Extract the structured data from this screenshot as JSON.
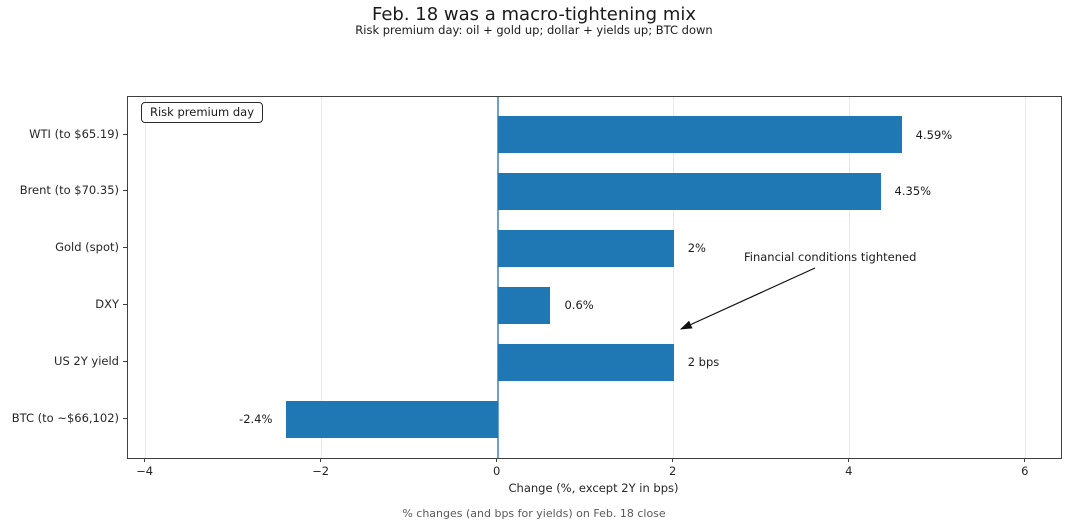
{
  "header": {
    "title": "Feb. 18 was a macro-tightening mix",
    "subtitle": "Risk premium day: oil + gold up; dollar + yields up; BTC down"
  },
  "footer": {
    "caption": "% changes (and bps for yields) on Feb. 18 close"
  },
  "chart_data": {
    "type": "bar",
    "orientation": "horizontal",
    "title": "Feb. 18 was a macro-tightening mix",
    "subtitle": "Risk premium day: oil + gold up; dollar + yields up; BTC down",
    "categories": [
      "WTI (to $65.19)",
      "Brent (to $70.35)",
      "Gold (spot)",
      "DXY",
      "US 2Y yield",
      "BTC (to ~$66,102)"
    ],
    "values": [
      4.59,
      4.35,
      2,
      0.6,
      2,
      -2.4
    ],
    "value_labels": [
      "4.59%",
      "4.35%",
      "2%",
      "0.6%",
      "2 bps",
      "-2.4%"
    ],
    "xlabel": "Change (%, except 2Y in bps)",
    "xlim": [
      -4.2,
      6.4
    ],
    "xticks": [
      -4,
      -2,
      0,
      2,
      4,
      6
    ],
    "xtick_labels": [
      "−4",
      "−2",
      "0",
      "2",
      "4",
      "6"
    ],
    "legend_box": "Risk premium day",
    "annotation": {
      "text": "Financial conditions tightened"
    },
    "zero_line_at": 0,
    "grid": "vertical-light",
    "legend_position": "upper-left",
    "colors": {
      "bar": "#1f77b4",
      "zero_line": "#6ba3cf",
      "grid": "#e9e9e9",
      "spine": "#404040",
      "caption": "#595959",
      "text": "#262626"
    }
  }
}
